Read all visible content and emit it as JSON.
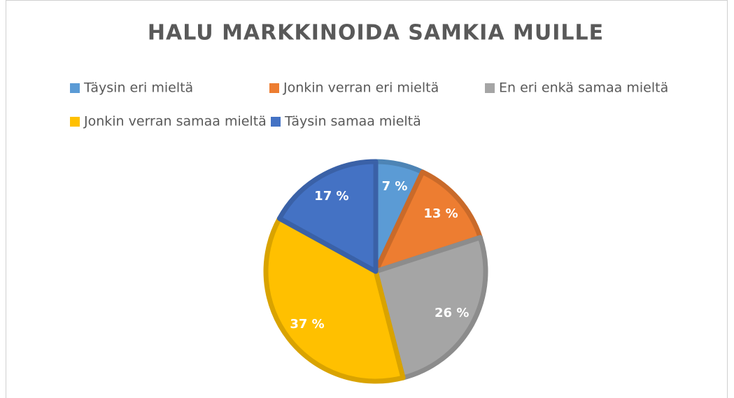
{
  "chart_data": {
    "type": "pie",
    "title": "HALU MARKKINOIDA SAMKIA MUILLE",
    "categories": [
      "Täysin eri mieltä",
      "Jonkin verran eri mieltä",
      "En eri enkä samaa mieltä",
      "Jonkin verran samaa mieltä",
      "Täysin samaa mieltä"
    ],
    "values": [
      7,
      13,
      26,
      37,
      17
    ],
    "value_labels": [
      "7 %",
      "13 %",
      "26 %",
      "37 %",
      "17 %"
    ],
    "colors": [
      "#5b9bd5",
      "#ed7d31",
      "#a5a5a5",
      "#ffc000",
      "#4472c4"
    ],
    "legend": "top"
  }
}
